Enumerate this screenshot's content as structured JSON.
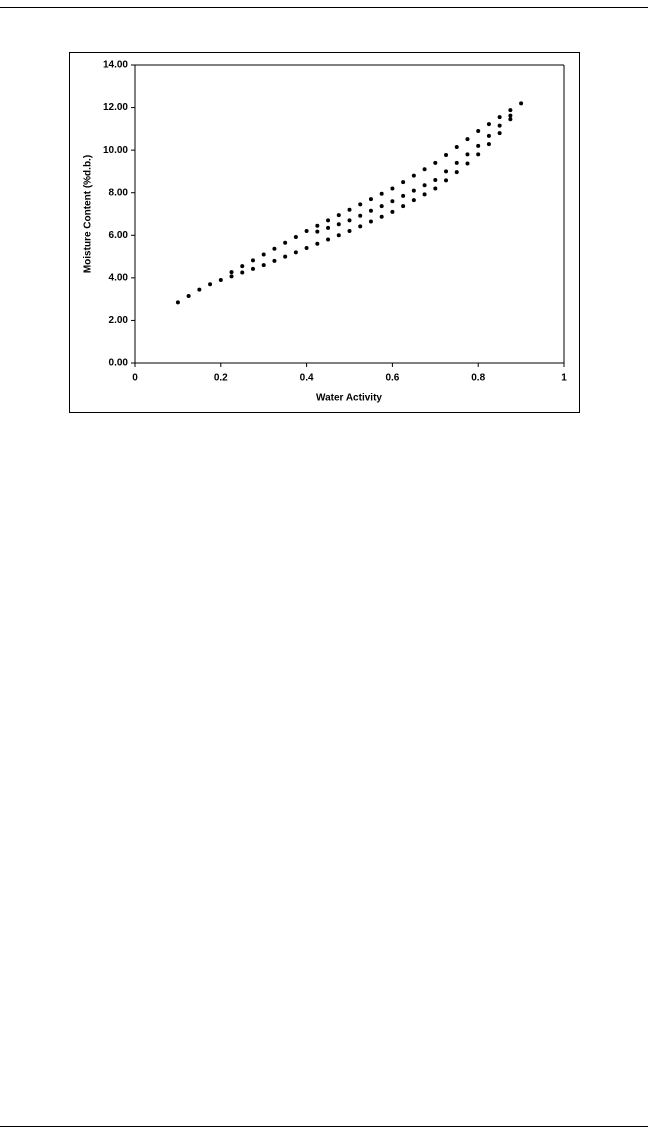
{
  "chart_data": {
    "type": "scatter",
    "x_label": "Water Activity",
    "y_label": "Moisture Content (%d.b.)",
    "xlim": [
      0,
      1
    ],
    "ylim": [
      0,
      14
    ],
    "xticks": [
      0,
      0.2,
      0.4,
      0.6,
      0.8,
      1
    ],
    "yticks": [
      {
        "value": 0,
        "label": "0.00"
      },
      {
        "value": 2,
        "label": "2.00"
      },
      {
        "value": 4,
        "label": "4.00"
      },
      {
        "value": 6,
        "label": "6.00"
      },
      {
        "value": 8,
        "label": "8.00"
      },
      {
        "value": 10,
        "label": "10.00"
      },
      {
        "value": 12,
        "label": "12.00"
      },
      {
        "value": 14,
        "label": "14.00"
      }
    ],
    "series": [
      {
        "color": "#000000",
        "x": [
          0.1,
          0.125,
          0.15,
          0.175,
          0.2,
          0.225,
          0.25,
          0.275,
          0.3,
          0.325,
          0.35,
          0.375,
          0.4,
          0.425,
          0.45,
          0.475,
          0.5,
          0.525,
          0.55,
          0.575,
          0.6,
          0.625,
          0.65,
          0.675,
          0.7,
          0.725,
          0.75,
          0.775,
          0.8,
          0.825,
          0.85,
          0.875,
          0.9
        ],
        "values": [
          2.85,
          3.15,
          3.45,
          3.7,
          3.9,
          4.07,
          4.25,
          4.42,
          4.6,
          4.8,
          5.0,
          5.2,
          5.4,
          5.6,
          5.8,
          6.0,
          6.2,
          6.42,
          6.65,
          6.87,
          7.1,
          7.37,
          7.65,
          7.92,
          8.2,
          8.58,
          8.97,
          9.37,
          9.8,
          10.28,
          10.8,
          11.45,
          12.2
        ]
      },
      {
        "color": "#000000",
        "x": [
          0.225,
          0.25,
          0.275,
          0.3,
          0.325,
          0.35,
          0.375,
          0.4,
          0.425,
          0.45,
          0.475,
          0.5,
          0.525,
          0.55,
          0.575,
          0.6,
          0.625,
          0.65,
          0.675,
          0.7,
          0.725,
          0.75,
          0.775,
          0.8,
          0.825,
          0.85,
          0.875
        ],
        "values": [
          4.27,
          4.55,
          4.82,
          5.1,
          5.37,
          5.65,
          5.92,
          6.2,
          6.45,
          6.7,
          6.95,
          7.2,
          7.45,
          7.7,
          7.95,
          8.2,
          8.5,
          8.8,
          9.1,
          9.4,
          9.77,
          10.15,
          10.52,
          10.9,
          11.22,
          11.55,
          11.88
        ]
      },
      {
        "color": "#000000",
        "x": [
          0.425,
          0.45,
          0.475,
          0.5,
          0.525,
          0.55,
          0.575,
          0.6,
          0.625,
          0.65,
          0.675,
          0.7,
          0.725,
          0.75,
          0.775,
          0.8,
          0.825,
          0.85,
          0.875
        ],
        "values": [
          6.17,
          6.35,
          6.52,
          6.7,
          6.92,
          7.15,
          7.37,
          7.6,
          7.85,
          8.1,
          8.35,
          8.6,
          9.0,
          9.4,
          9.8,
          10.2,
          10.67,
          11.15,
          11.62
        ]
      }
    ]
  }
}
